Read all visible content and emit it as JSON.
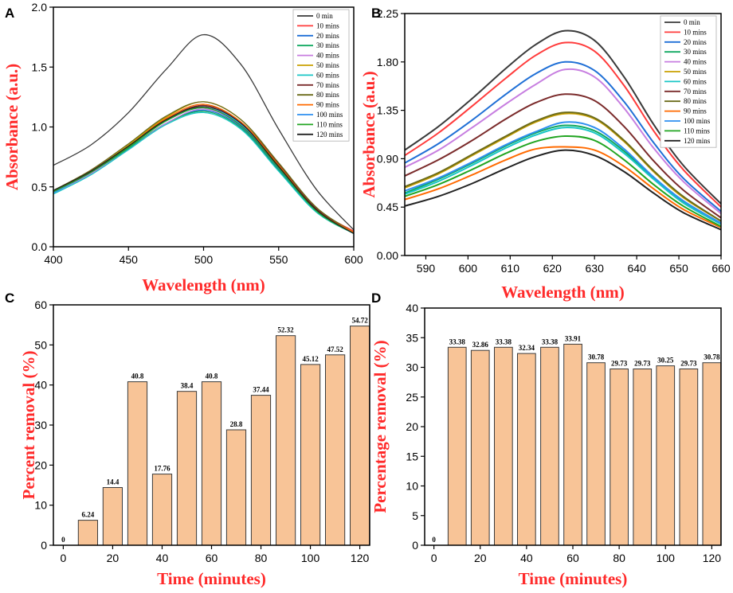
{
  "colors": {
    "axis_title": "#ff2a2a",
    "bar_fill": "#f8c497",
    "bar_stroke": "#3a3a3a",
    "axis": "#000000"
  },
  "chart_data": [
    {
      "panel": "A",
      "type": "line",
      "title": "",
      "xlabel": "Wavelength (nm)",
      "ylabel": "Absorbance (a.u.)",
      "xlim": [
        400,
        600
      ],
      "ylim": [
        0.0,
        2.0
      ],
      "xticks": [
        "400",
        "450",
        "500",
        "550",
        "600"
      ],
      "yticks": [
        "0.0",
        "0.5",
        "1.0",
        "1.5",
        "2.0"
      ],
      "legend_position": "top-right",
      "x": [
        400,
        425,
        450,
        475,
        500,
        525,
        550,
        575,
        600
      ],
      "series": [
        {
          "name": "0 min",
          "color": "#3a3a3a",
          "values": [
            0.68,
            0.85,
            1.12,
            1.48,
            1.77,
            1.52,
            0.98,
            0.48,
            0.14
          ]
        },
        {
          "name": "10 mins",
          "color": "#ff3b3b",
          "values": [
            0.46,
            0.63,
            0.84,
            1.06,
            1.18,
            1.04,
            0.68,
            0.32,
            0.13
          ]
        },
        {
          "name": "20 mins",
          "color": "#1f6fd6",
          "values": [
            0.45,
            0.61,
            0.82,
            1.03,
            1.14,
            1.0,
            0.65,
            0.3,
            0.11
          ]
        },
        {
          "name": "30 mins",
          "color": "#10a860",
          "values": [
            0.46,
            0.61,
            0.82,
            1.03,
            1.13,
            0.99,
            0.64,
            0.29,
            0.11
          ]
        },
        {
          "name": "40 mins",
          "color": "#c77ee0",
          "values": [
            0.45,
            0.61,
            0.81,
            1.03,
            1.15,
            1.01,
            0.66,
            0.31,
            0.12
          ]
        },
        {
          "name": "50 mins",
          "color": "#c9a000",
          "values": [
            0.46,
            0.63,
            0.85,
            1.08,
            1.21,
            1.06,
            0.69,
            0.32,
            0.12
          ]
        },
        {
          "name": "60 mins",
          "color": "#18c6c6",
          "values": [
            0.44,
            0.6,
            0.81,
            1.02,
            1.12,
            0.98,
            0.63,
            0.29,
            0.11
          ]
        },
        {
          "name": "70 mins",
          "color": "#7b2b2b",
          "values": [
            0.46,
            0.63,
            0.84,
            1.06,
            1.18,
            1.04,
            0.69,
            0.32,
            0.12
          ]
        },
        {
          "name": "80 mins",
          "color": "#6b6b1a",
          "values": [
            0.47,
            0.64,
            0.86,
            1.09,
            1.21,
            1.06,
            0.7,
            0.33,
            0.12
          ]
        },
        {
          "name": "90 mins",
          "color": "#ff6a00",
          "values": [
            0.46,
            0.63,
            0.84,
            1.07,
            1.19,
            1.04,
            0.68,
            0.31,
            0.12
          ]
        },
        {
          "name": "100 mins",
          "color": "#2e8ff0",
          "values": [
            0.45,
            0.62,
            0.83,
            1.05,
            1.16,
            1.02,
            0.66,
            0.3,
            0.11
          ]
        },
        {
          "name": "110 mins",
          "color": "#22a522",
          "values": [
            0.46,
            0.62,
            0.83,
            1.05,
            1.16,
            1.01,
            0.66,
            0.3,
            0.11
          ]
        },
        {
          "name": "120 mins",
          "color": "#222222",
          "values": [
            0.47,
            0.63,
            0.84,
            1.06,
            1.17,
            1.03,
            0.67,
            0.31,
            0.11
          ]
        }
      ]
    },
    {
      "panel": "B",
      "type": "line",
      "title": "",
      "xlabel": "Wavelength (nm)",
      "ylabel": "Absorbance (a.u.)",
      "xlim": [
        585,
        660
      ],
      "ylim": [
        0.0,
        2.25
      ],
      "xticks": [
        "590",
        "600",
        "610",
        "620",
        "630",
        "640",
        "650",
        "660"
      ],
      "yticks": [
        "0.00",
        "0.45",
        "0.90",
        "1.35",
        "1.80",
        "2.25"
      ],
      "legend_position": "top-right",
      "x": [
        585,
        593,
        601,
        609,
        616,
        623,
        630,
        637,
        644,
        651,
        660
      ],
      "series": [
        {
          "name": "0 min",
          "color": "#3a3a3a",
          "values": [
            0.98,
            1.2,
            1.46,
            1.74,
            1.96,
            2.09,
            2.0,
            1.66,
            1.22,
            0.84,
            0.48
          ]
        },
        {
          "name": "10 mins",
          "color": "#ff3b3b",
          "values": [
            0.93,
            1.14,
            1.39,
            1.65,
            1.86,
            1.98,
            1.9,
            1.58,
            1.16,
            0.8,
            0.45
          ]
        },
        {
          "name": "20 mins",
          "color": "#1f6fd6",
          "values": [
            0.86,
            1.04,
            1.26,
            1.5,
            1.69,
            1.8,
            1.72,
            1.43,
            1.05,
            0.72,
            0.41
          ]
        },
        {
          "name": "30 mins",
          "color": "#10a860",
          "values": [
            0.58,
            0.71,
            0.86,
            1.02,
            1.14,
            1.21,
            1.16,
            0.97,
            0.72,
            0.5,
            0.3
          ]
        },
        {
          "name": "40 mins",
          "color": "#c77ee0",
          "values": [
            0.82,
            0.98,
            1.19,
            1.41,
            1.59,
            1.73,
            1.66,
            1.37,
            1.0,
            0.69,
            0.39
          ]
        },
        {
          "name": "50 mins",
          "color": "#c9a000",
          "values": [
            0.63,
            0.76,
            0.93,
            1.1,
            1.24,
            1.32,
            1.27,
            1.06,
            0.78,
            0.54,
            0.32
          ]
        },
        {
          "name": "60 mins",
          "color": "#18c6c6",
          "values": [
            0.57,
            0.69,
            0.84,
            1.0,
            1.12,
            1.19,
            1.14,
            0.95,
            0.71,
            0.49,
            0.29
          ]
        },
        {
          "name": "70 mins",
          "color": "#7b2b2b",
          "values": [
            0.74,
            0.89,
            1.07,
            1.27,
            1.42,
            1.5,
            1.44,
            1.2,
            0.88,
            0.61,
            0.35
          ]
        },
        {
          "name": "80 mins",
          "color": "#6b6b1a",
          "values": [
            0.64,
            0.77,
            0.94,
            1.11,
            1.25,
            1.33,
            1.28,
            1.07,
            0.79,
            0.55,
            0.32
          ]
        },
        {
          "name": "90 mins",
          "color": "#ff6a00",
          "values": [
            0.52,
            0.62,
            0.75,
            0.89,
            0.99,
            1.01,
            0.98,
            0.83,
            0.62,
            0.43,
            0.26
          ]
        },
        {
          "name": "100 mins",
          "color": "#2e8ff0",
          "values": [
            0.6,
            0.72,
            0.87,
            1.03,
            1.15,
            1.24,
            1.19,
            0.99,
            0.73,
            0.51,
            0.3
          ]
        },
        {
          "name": "110 mins",
          "color": "#22a522",
          "values": [
            0.55,
            0.66,
            0.8,
            0.95,
            1.06,
            1.11,
            1.07,
            0.89,
            0.66,
            0.46,
            0.27
          ]
        },
        {
          "name": "120 mins",
          "color": "#222222",
          "values": [
            0.46,
            0.55,
            0.67,
            0.81,
            0.92,
            0.98,
            0.93,
            0.78,
            0.58,
            0.4,
            0.24
          ]
        }
      ]
    },
    {
      "panel": "C",
      "type": "bar",
      "title": "",
      "xlabel": "Time (minutes)",
      "ylabel": "Percent removal (%)",
      "xlim": [
        -4,
        124
      ],
      "ylim": [
        0,
        60
      ],
      "xticks": [
        "0",
        "20",
        "40",
        "60",
        "80",
        "100",
        "120"
      ],
      "yticks": [
        "0",
        "10",
        "20",
        "30",
        "40",
        "50",
        "60"
      ],
      "x": [
        0,
        10,
        20,
        30,
        40,
        50,
        60,
        70,
        80,
        90,
        100,
        110,
        120
      ],
      "values": [
        0,
        6.24,
        14.4,
        40.8,
        17.76,
        38.4,
        40.8,
        28.8,
        37.44,
        52.32,
        45.12,
        47.52,
        54.72
      ],
      "labels": [
        "0",
        "6.24",
        "14.4",
        "40.8",
        "17.76",
        "38.4",
        "40.8",
        "28.8",
        "37.44",
        "52.32",
        "45.12",
        "47.52",
        "54.72"
      ]
    },
    {
      "panel": "D",
      "type": "bar",
      "title": "",
      "xlabel": "Time (minutes)",
      "ylabel": "Percentage removal (%)",
      "xlim": [
        -4,
        124
      ],
      "ylim": [
        0,
        40
      ],
      "xticks": [
        "0",
        "20",
        "40",
        "60",
        "80",
        "100",
        "120"
      ],
      "yticks": [
        "0",
        "5",
        "10",
        "15",
        "20",
        "25",
        "30",
        "35",
        "40"
      ],
      "x": [
        0,
        10,
        20,
        30,
        40,
        50,
        60,
        70,
        80,
        90,
        100,
        110,
        120
      ],
      "values": [
        0,
        33.38,
        32.86,
        33.38,
        32.34,
        33.38,
        33.91,
        30.78,
        29.73,
        29.73,
        30.25,
        29.73,
        30.78
      ],
      "labels": [
        "0",
        "33.38",
        "32.86",
        "33.38",
        "32.34",
        "33.38",
        "33.91",
        "30.78",
        "29.73",
        "29.73",
        "30.25",
        "29.73",
        "30.78"
      ]
    }
  ]
}
